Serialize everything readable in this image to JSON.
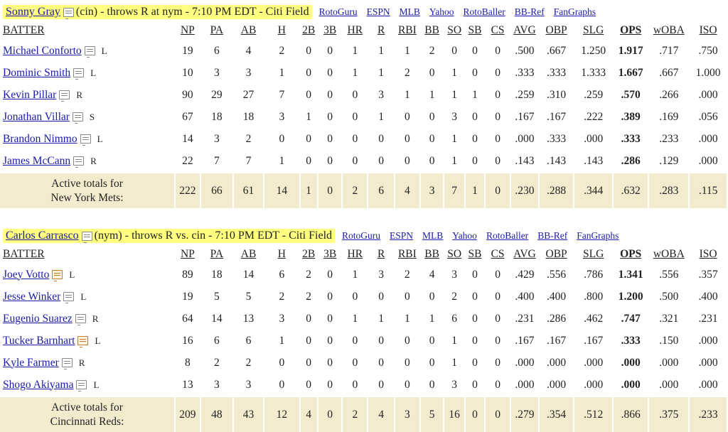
{
  "columns": [
    "BATTER",
    "NP",
    "PA",
    "AB",
    "H",
    "2B",
    "3B",
    "HR",
    "R",
    "RBI",
    "BB",
    "SO",
    "SB",
    "CS",
    "AVG",
    "OBP",
    "SLG",
    "OPS",
    "wOBA",
    "ISO"
  ],
  "links": [
    "RotoGuru",
    "ESPN",
    "MLB",
    "Yahoo",
    "RotoBaller",
    "BB-Ref",
    "FanGraphs"
  ],
  "games": [
    {
      "pitcher_name": "Sonny Gray",
      "pitcher_info": "(cin) - throws R at nym - 7:10 PM EDT - Citi Field",
      "batters": [
        {
          "name": "Michael Conforto",
          "hand": "L",
          "note": "plain",
          "stats": [
            "19",
            "6",
            "4",
            "2",
            "0",
            "0",
            "1",
            "1",
            "1",
            "2",
            "0",
            "0",
            "0",
            ".500",
            ".667",
            "1.250",
            "1.917",
            ".717",
            ".750"
          ]
        },
        {
          "name": "Dominic Smith",
          "hand": "L",
          "note": "plain",
          "stats": [
            "10",
            "3",
            "3",
            "1",
            "0",
            "0",
            "1",
            "1",
            "2",
            "0",
            "1",
            "0",
            "0",
            ".333",
            ".333",
            "1.333",
            "1.667",
            ".667",
            "1.000"
          ]
        },
        {
          "name": "Kevin Pillar",
          "hand": "R",
          "note": "plain",
          "stats": [
            "90",
            "29",
            "27",
            "7",
            "0",
            "0",
            "0",
            "3",
            "1",
            "1",
            "1",
            "1",
            "0",
            ".259",
            ".310",
            ".259",
            ".570",
            ".266",
            ".000"
          ]
        },
        {
          "name": "Jonathan Villar",
          "hand": "S",
          "note": "plain",
          "stats": [
            "67",
            "18",
            "18",
            "3",
            "1",
            "0",
            "0",
            "1",
            "0",
            "0",
            "3",
            "0",
            "0",
            ".167",
            ".167",
            ".222",
            ".389",
            ".169",
            ".056"
          ]
        },
        {
          "name": "Brandon Nimmo",
          "hand": "L",
          "note": "plain",
          "stats": [
            "14",
            "3",
            "2",
            "0",
            "0",
            "0",
            "0",
            "0",
            "0",
            "0",
            "1",
            "0",
            "0",
            ".000",
            ".333",
            ".000",
            ".333",
            ".233",
            ".000"
          ]
        },
        {
          "name": "James McCann",
          "hand": "R",
          "note": "plain",
          "stats": [
            "22",
            "7",
            "7",
            "1",
            "0",
            "0",
            "0",
            "0",
            "0",
            "0",
            "1",
            "0",
            "0",
            ".143",
            ".143",
            ".143",
            ".286",
            ".129",
            ".000"
          ]
        }
      ],
      "totals_label_1": "Active totals for",
      "totals_label_2": "New York Mets:",
      "totals": [
        "222",
        "66",
        "61",
        "14",
        "1",
        "0",
        "2",
        "6",
        "4",
        "3",
        "7",
        "1",
        "0",
        ".230",
        ".288",
        ".344",
        ".632",
        ".283",
        ".115"
      ]
    },
    {
      "pitcher_name": "Carlos Carrasco",
      "pitcher_info": "(nym) - throws R vs. cin - 7:10 PM EDT - Citi Field",
      "batters": [
        {
          "name": "Joey Votto",
          "hand": "L",
          "note": "hot",
          "stats": [
            "89",
            "18",
            "14",
            "6",
            "2",
            "0",
            "1",
            "3",
            "2",
            "4",
            "3",
            "0",
            "0",
            ".429",
            ".556",
            ".786",
            "1.341",
            ".556",
            ".357"
          ]
        },
        {
          "name": "Jesse Winker",
          "hand": "L",
          "note": "plain",
          "stats": [
            "19",
            "5",
            "5",
            "2",
            "2",
            "0",
            "0",
            "0",
            "0",
            "0",
            "2",
            "0",
            "0",
            ".400",
            ".400",
            ".800",
            "1.200",
            ".500",
            ".400"
          ]
        },
        {
          "name": "Eugenio Suarez",
          "hand": "R",
          "note": "plain",
          "stats": [
            "64",
            "14",
            "13",
            "3",
            "0",
            "0",
            "1",
            "1",
            "1",
            "1",
            "6",
            "0",
            "0",
            ".231",
            ".286",
            ".462",
            ".747",
            ".321",
            ".231"
          ]
        },
        {
          "name": "Tucker Barnhart",
          "hand": "L",
          "note": "hot",
          "stats": [
            "16",
            "6",
            "6",
            "1",
            "0",
            "0",
            "0",
            "0",
            "0",
            "0",
            "1",
            "0",
            "0",
            ".167",
            ".167",
            ".167",
            ".333",
            ".150",
            ".000"
          ]
        },
        {
          "name": "Kyle Farmer",
          "hand": "R",
          "note": "plain",
          "stats": [
            "8",
            "2",
            "2",
            "0",
            "0",
            "0",
            "0",
            "0",
            "0",
            "0",
            "1",
            "0",
            "0",
            ".000",
            ".000",
            ".000",
            ".000",
            ".000",
            ".000"
          ]
        },
        {
          "name": "Shogo Akiyama",
          "hand": "L",
          "note": "plain",
          "stats": [
            "13",
            "3",
            "3",
            "0",
            "0",
            "0",
            "0",
            "0",
            "0",
            "0",
            "3",
            "0",
            "0",
            ".000",
            ".000",
            ".000",
            ".000",
            ".000",
            ".000"
          ]
        }
      ],
      "totals_label_1": "Active totals for",
      "totals_label_2": "Cincinnati Reds:",
      "totals": [
        "209",
        "48",
        "43",
        "12",
        "4",
        "0",
        "2",
        "4",
        "3",
        "5",
        "16",
        "0",
        "0",
        ".279",
        ".354",
        ".512",
        ".866",
        ".375",
        ".233"
      ]
    }
  ]
}
